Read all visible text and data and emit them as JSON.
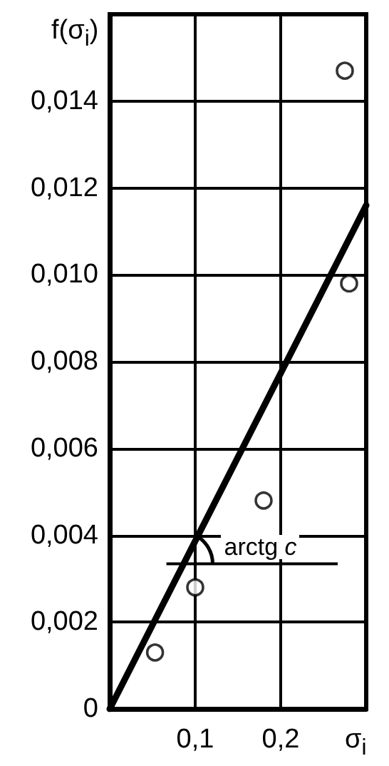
{
  "chart_data": {
    "type": "scatter",
    "xlabel": "σ$_{i}$",
    "ylabel": "f(σ$_{i}$)",
    "xlim": [
      0,
      0.3
    ],
    "xticks": [
      {
        "value": 0,
        "label": null
      },
      {
        "value": 0.1,
        "label": "0,1"
      },
      {
        "value": 0.2,
        "label": "0,2"
      },
      {
        "value": 0.3,
        "label": null
      }
    ],
    "ylim": [
      0,
      0.016
    ],
    "yticks": [
      {
        "value": 0,
        "label": "0"
      },
      {
        "value": 0.002,
        "label": "0,002"
      },
      {
        "value": 0.004,
        "label": "0,004"
      },
      {
        "value": 0.006,
        "label": "0,006"
      },
      {
        "value": 0.008,
        "label": "0,008"
      },
      {
        "value": 0.01,
        "label": "0,010"
      },
      {
        "value": 0.012,
        "label": "0,012"
      },
      {
        "value": 0.014,
        "label": "0,014"
      },
      {
        "value": 0.016,
        "label": null
      }
    ],
    "grid": true,
    "marker": "circle",
    "annotations": [
      {
        "text": "arctg c",
        "x": 0.1,
        "y": 0.004
      }
    ],
    "series": [
      {
        "color": "#000000",
        "x": [
          0.053,
          0.1,
          0.18,
          0.28,
          0.275
        ],
        "values": [
          0.0013,
          0.0028,
          0.0048,
          0.0098,
          0.0147
        ]
      },
      {
        "type": "line",
        "color": "#000000",
        "marker": "none",
        "line_style": "solid",
        "x": [
          0,
          0.3
        ],
        "values": [
          0,
          0.0116
        ]
      }
    ]
  }
}
